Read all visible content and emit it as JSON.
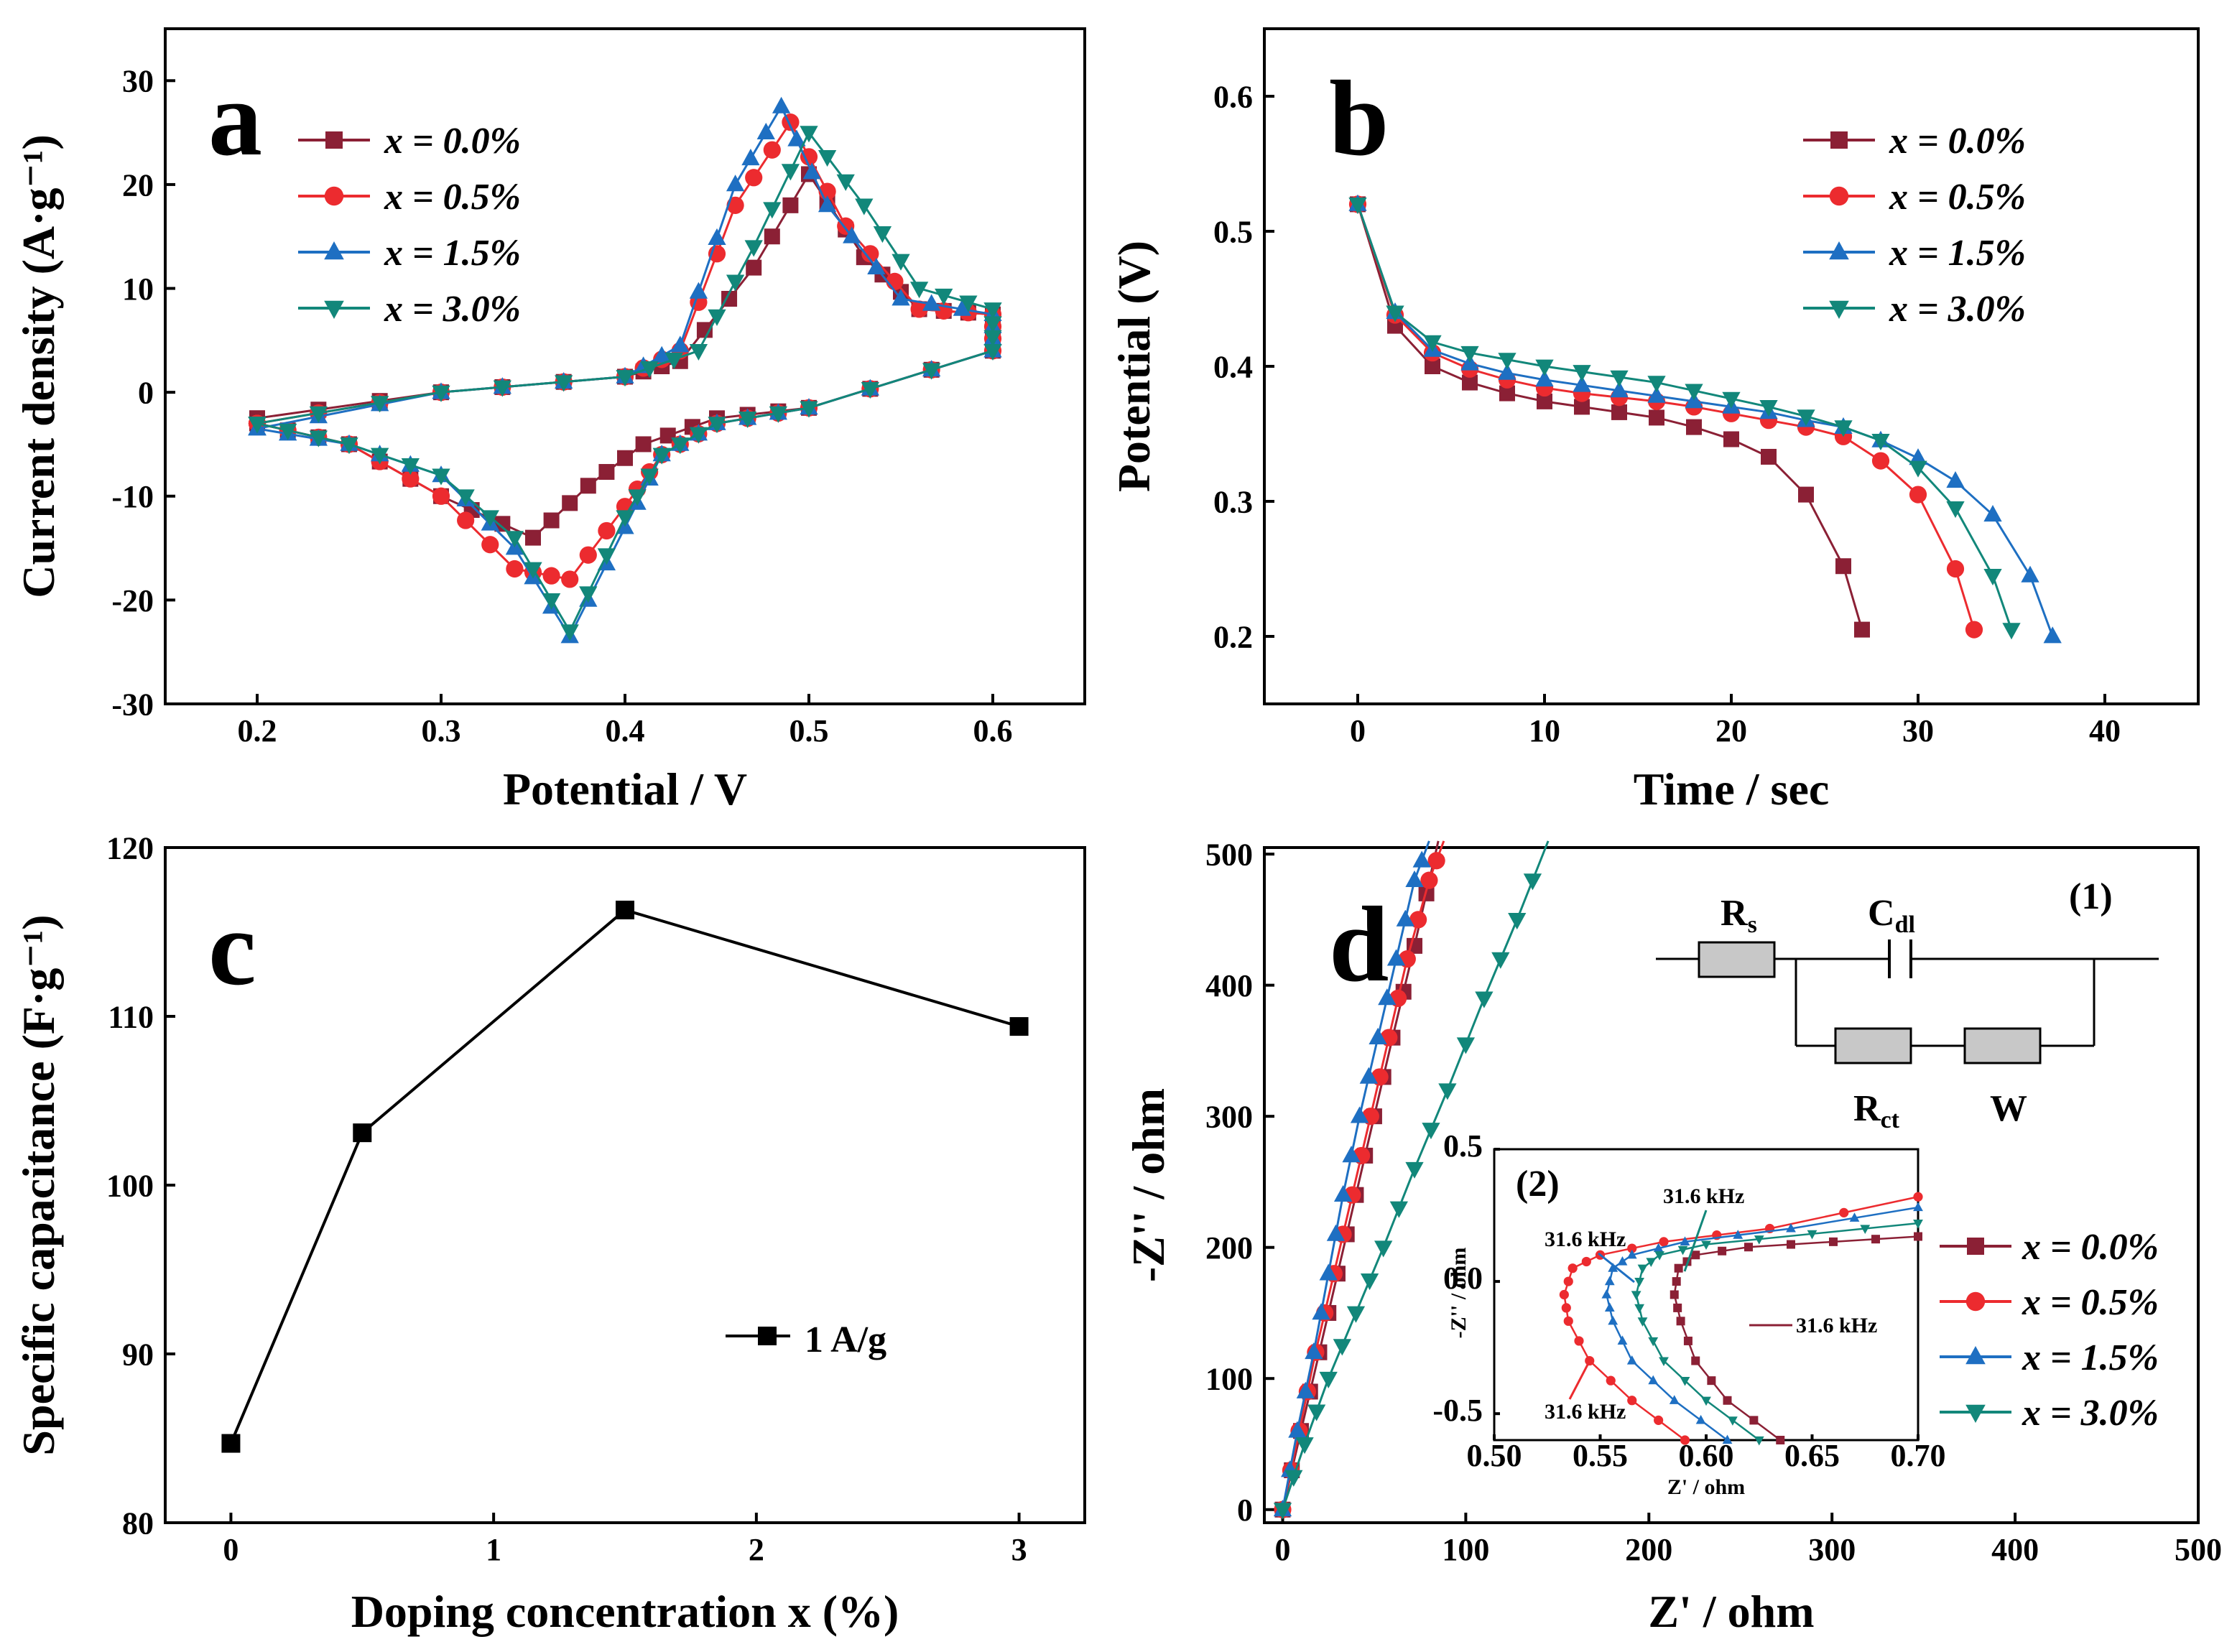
{
  "colors": {
    "x0": "#8b2035",
    "x05": "#ec2b2f",
    "x15": "#1e6fc2",
    "x30": "#12877a",
    "black": "#000000",
    "resistor": "#c8c8c8"
  },
  "chart_data": [
    {
      "id": "a",
      "type": "line",
      "panel_label": "a",
      "xlabel": "Potential / V",
      "ylabel": "Current density (A·g⁻¹)",
      "xlim": [
        0.15,
        0.65
      ],
      "ylim": [
        -30,
        35
      ],
      "xticks": [
        "0.2",
        "0.3",
        "0.4",
        "0.5",
        "0.6"
      ],
      "yticks": [
        "-30",
        "-20",
        "-10",
        "0",
        "10",
        "20",
        "30"
      ],
      "legend": [
        "x = 0.0%",
        "x = 0.5%",
        "x = 1.5%",
        "x = 3.0%"
      ],
      "series": [
        {
          "name": "x = 0.0%",
          "color": "#8b2035",
          "marker": "square",
          "ox": [
            0.2,
            0.3,
            0.4,
            0.43,
            0.47,
            0.5,
            0.53,
            0.56,
            0.6
          ],
          "oy": [
            -2.5,
            0,
            1.5,
            3,
            12,
            21,
            13,
            8,
            7.5
          ],
          "rx": [
            0.6,
            0.5,
            0.45,
            0.41,
            0.38,
            0.35,
            0.3,
            0.25,
            0.2
          ],
          "ry": [
            4,
            -1.5,
            -2.5,
            -5,
            -9,
            -14,
            -10,
            -5,
            -3
          ]
        },
        {
          "name": "x = 0.5%",
          "color": "#ec2b2f",
          "marker": "circle",
          "ox": [
            0.2,
            0.3,
            0.4,
            0.43,
            0.46,
            0.49,
            0.52,
            0.56,
            0.6
          ],
          "oy": [
            -3,
            0,
            1.5,
            4,
            18,
            26,
            16,
            8,
            7.5
          ],
          "rx": [
            0.6,
            0.5,
            0.45,
            0.42,
            0.4,
            0.37,
            0.34,
            0.3,
            0.25,
            0.2
          ],
          "ry": [
            4,
            -1.5,
            -3,
            -6,
            -11,
            -18,
            -17,
            -10,
            -5,
            -3
          ]
        },
        {
          "name": "x = 1.5%",
          "color": "#1e6fc2",
          "marker": "triangle-up",
          "ox": [
            0.2,
            0.3,
            0.4,
            0.43,
            0.46,
            0.485,
            0.51,
            0.55,
            0.6
          ],
          "oy": [
            -3.5,
            0,
            1.5,
            4.5,
            20,
            27.5,
            18,
            9,
            7.5
          ],
          "rx": [
            0.6,
            0.5,
            0.45,
            0.42,
            0.4,
            0.37,
            0.34,
            0.3,
            0.25,
            0.2
          ],
          "ry": [
            4,
            -1.5,
            -3,
            -6,
            -13,
            -23.5,
            -15,
            -8,
            -5,
            -3.5
          ]
        },
        {
          "name": "x = 3.0%",
          "color": "#12877a",
          "marker": "triangle-down",
          "ox": [
            0.2,
            0.3,
            0.4,
            0.44,
            0.47,
            0.5,
            0.53,
            0.56,
            0.6
          ],
          "oy": [
            -3,
            0,
            1.5,
            4,
            14,
            25,
            18,
            10,
            8
          ],
          "rx": [
            0.6,
            0.5,
            0.45,
            0.42,
            0.4,
            0.37,
            0.34,
            0.3,
            0.25,
            0.2
          ],
          "ry": [
            4,
            -1.5,
            -3,
            -6,
            -12,
            -23,
            -14,
            -8,
            -5,
            -3
          ]
        }
      ]
    },
    {
      "id": "b",
      "type": "line",
      "panel_label": "b",
      "xlabel": "Time / sec",
      "ylabel": "Potential (V)",
      "xlim": [
        -5,
        45
      ],
      "ylim": [
        0.15,
        0.65
      ],
      "xticks": [
        "0",
        "10",
        "20",
        "30",
        "40"
      ],
      "yticks": [
        "0.2",
        "0.3",
        "0.4",
        "0.5",
        "0.6"
      ],
      "legend": [
        "x = 0.0%",
        "x = 0.5%",
        "x = 1.5%",
        "x = 3.0%"
      ],
      "series": [
        {
          "name": "x = 0.0%",
          "color": "#8b2035",
          "marker": "square",
          "x": [
            0,
            2,
            4,
            6,
            8,
            10,
            12,
            14,
            16,
            18,
            20,
            22,
            24,
            26,
            27
          ],
          "y": [
            0.52,
            0.43,
            0.4,
            0.388,
            0.38,
            0.374,
            0.37,
            0.366,
            0.362,
            0.355,
            0.346,
            0.333,
            0.305,
            0.252,
            0.205
          ]
        },
        {
          "name": "x = 0.5%",
          "color": "#ec2b2f",
          "marker": "circle",
          "x": [
            0,
            2,
            4,
            6,
            8,
            10,
            12,
            14,
            16,
            18,
            20,
            22,
            24,
            26,
            28,
            30,
            32,
            33
          ],
          "y": [
            0.52,
            0.438,
            0.41,
            0.398,
            0.39,
            0.384,
            0.38,
            0.377,
            0.374,
            0.37,
            0.365,
            0.36,
            0.355,
            0.348,
            0.33,
            0.305,
            0.25,
            0.205
          ]
        },
        {
          "name": "x = 1.5%",
          "color": "#1e6fc2",
          "marker": "triangle-up",
          "x": [
            0,
            2,
            4,
            6,
            8,
            10,
            12,
            14,
            16,
            18,
            20,
            22,
            24,
            26,
            28,
            30,
            32,
            34,
            36,
            37.2
          ],
          "y": [
            0.52,
            0.44,
            0.412,
            0.402,
            0.395,
            0.39,
            0.386,
            0.382,
            0.378,
            0.374,
            0.37,
            0.366,
            0.36,
            0.355,
            0.345,
            0.332,
            0.315,
            0.29,
            0.245,
            0.2
          ]
        },
        {
          "name": "x = 3.0%",
          "color": "#12877a",
          "marker": "triangle-down",
          "x": [
            0,
            2,
            4,
            6,
            8,
            10,
            12,
            14,
            16,
            18,
            20,
            22,
            24,
            26,
            28,
            30,
            32,
            34,
            35
          ],
          "y": [
            0.52,
            0.44,
            0.418,
            0.41,
            0.405,
            0.4,
            0.396,
            0.392,
            0.388,
            0.382,
            0.376,
            0.37,
            0.363,
            0.355,
            0.345,
            0.325,
            0.295,
            0.245,
            0.205
          ]
        }
      ]
    },
    {
      "id": "c",
      "type": "line",
      "panel_label": "c",
      "xlabel": "Doping concentration x  (%)",
      "ylabel": "Specific capacitance (F·g⁻¹)",
      "xlim": [
        -0.25,
        3.25
      ],
      "ylim": [
        80,
        120
      ],
      "xticks": [
        "0",
        "1",
        "2",
        "3"
      ],
      "yticks": [
        "80",
        "90",
        "100",
        "110",
        "120"
      ],
      "legend": [
        "1 A/g"
      ],
      "series": [
        {
          "name": "1 A/g",
          "color": "#000000",
          "marker": "square",
          "x": [
            0,
            0.5,
            1.5,
            3
          ],
          "y": [
            84.7,
            103.1,
            116.3,
            109.4
          ]
        }
      ]
    },
    {
      "id": "d",
      "type": "line",
      "panel_label": "d",
      "xlabel": "Z' / ohm",
      "ylabel": "-Z'' / ohm",
      "xlim": [
        -10,
        500
      ],
      "ylim": [
        -10,
        505
      ],
      "xticks": [
        "0",
        "100",
        "200",
        "300",
        "400",
        "500"
      ],
      "yticks": [
        "0",
        "100",
        "200",
        "300",
        "400",
        "500"
      ],
      "legend": [
        "x = 0.0%",
        "x = 0.5%",
        "x = 1.5%",
        "x = 3.0%"
      ],
      "circuit_labels": {
        "rs": "R",
        "rs_sub": "s",
        "cdl": "C",
        "cdl_sub": "dl",
        "rct": "R",
        "rct_sub": "ct",
        "w": "W",
        "num": "(1)"
      },
      "series": [
        {
          "name": "x = 0.0%",
          "color": "#8b2035",
          "marker": "square",
          "x": [
            0,
            10,
            20,
            30,
            40,
            50,
            60,
            72,
            85
          ],
          "y": [
            0,
            60,
            120,
            180,
            240,
            300,
            360,
            430,
            510
          ]
        },
        {
          "name": "x = 0.5%",
          "color": "#ec2b2f",
          "marker": "circle",
          "x": [
            0,
            9,
            18,
            28,
            38,
            48,
            58,
            68,
            80,
            88
          ],
          "y": [
            0,
            60,
            120,
            180,
            240,
            300,
            360,
            420,
            480,
            510
          ]
        },
        {
          "name": "x = 1.5%",
          "color": "#1e6fc2",
          "marker": "triangle-up",
          "x": [
            0,
            8,
            17,
            25,
            33,
            42,
            52,
            62,
            72,
            80
          ],
          "y": [
            0,
            60,
            120,
            180,
            240,
            300,
            360,
            420,
            480,
            510
          ]
        },
        {
          "name": "x = 3.0%",
          "color": "#12877a",
          "marker": "triangle-down",
          "x": [
            0,
            12,
            25,
            40,
            55,
            72,
            90,
            110,
            128,
            145
          ],
          "y": [
            0,
            50,
            100,
            150,
            200,
            260,
            320,
            390,
            450,
            510
          ]
        }
      ],
      "inset": {
        "label": "(2)",
        "xlabel": "Z' / ohm",
        "ylabel": "-Z'' / ohm",
        "xlim": [
          0.5,
          0.7
        ],
        "ylim": [
          -0.6,
          0.5
        ],
        "xticks": [
          "0.50",
          "0.55",
          "0.60",
          "0.65",
          "0.70"
        ],
        "yticks": [
          "-0.5",
          "0.0",
          "0.5"
        ],
        "annotations": [
          "31.6 kHz",
          "31.6 kHz",
          "31.6 kHz",
          "31.6 kHz"
        ],
        "series": [
          {
            "name": "x = 0.0%",
            "color": "#8b2035",
            "x": [
              0.635,
              0.61,
              0.595,
              0.588,
              0.585,
              0.587,
              0.595,
              0.62,
              0.66,
              0.7
            ],
            "y": [
              -0.6,
              -0.45,
              -0.3,
              -0.15,
              -0.05,
              0.05,
              0.1,
              0.13,
              0.15,
              0.17
            ]
          },
          {
            "name": "x = 0.5%",
            "color": "#ec2b2f",
            "x": [
              0.59,
              0.565,
              0.545,
              0.535,
              0.533,
              0.537,
              0.55,
              0.58,
              0.63,
              0.7
            ],
            "y": [
              -0.6,
              -0.45,
              -0.3,
              -0.15,
              -0.05,
              0.05,
              0.1,
              0.15,
              0.2,
              0.32
            ]
          },
          {
            "name": "x = 1.5%",
            "color": "#1e6fc2",
            "x": [
              0.61,
              0.585,
              0.565,
              0.556,
              0.553,
              0.556,
              0.565,
              0.59,
              0.64,
              0.7
            ],
            "y": [
              -0.6,
              -0.45,
              -0.3,
              -0.15,
              -0.05,
              0.05,
              0.1,
              0.15,
              0.2,
              0.28
            ]
          },
          {
            "name": "x = 3.0%",
            "color": "#12877a",
            "x": [
              0.625,
              0.6,
              0.58,
              0.57,
              0.567,
              0.57,
              0.578,
              0.6,
              0.65,
              0.7
            ],
            "y": [
              -0.6,
              -0.45,
              -0.3,
              -0.15,
              -0.05,
              0.05,
              0.1,
              0.14,
              0.18,
              0.22
            ]
          }
        ]
      }
    }
  ]
}
